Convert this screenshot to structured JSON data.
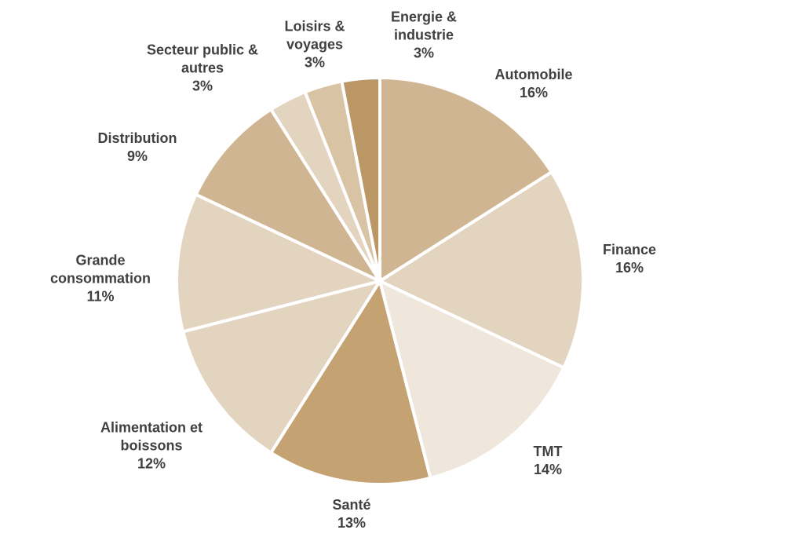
{
  "chart_data": {
    "type": "pie",
    "categories": [
      "Automobile",
      "Finance",
      "TMT",
      "Santé",
      "Alimentation et boissons",
      "Grande consommation",
      "Distribution",
      "Secteur public & autres",
      "Loisirs & voyages",
      "Energie & industrie"
    ],
    "values": [
      16,
      16,
      14,
      13,
      12,
      11,
      9,
      3,
      3,
      3
    ],
    "value_labels": [
      "16%",
      "16%",
      "14%",
      "13%",
      "12%",
      "11%",
      "9%",
      "3%",
      "3%",
      "3%"
    ],
    "colors": [
      "#cfb592",
      "#e3d4c0",
      "#efe7dc",
      "#c4a272",
      "#e3d4c0",
      "#e3d4c0",
      "#cfb592",
      "#e3d4c0",
      "#d9c3a5",
      "#bb9766"
    ]
  }
}
